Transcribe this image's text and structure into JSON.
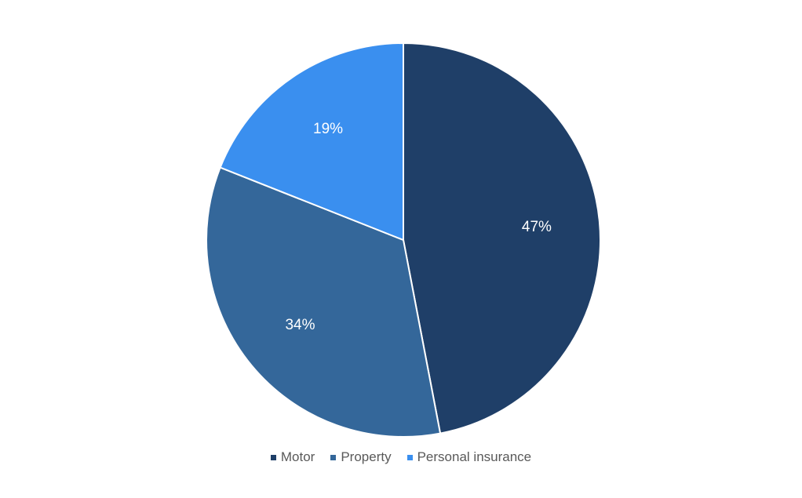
{
  "chart_data": {
    "type": "pie",
    "categories": [
      "Motor",
      "Property",
      "Personal insurance"
    ],
    "values": [
      47,
      34,
      19
    ],
    "labels": [
      "47%",
      "34%",
      "19%"
    ],
    "colors": [
      "#1f3f68",
      "#34679a",
      "#3a8fef"
    ],
    "start_angle": "12 o'clock",
    "direction": "clockwise",
    "legend_position": "bottom"
  }
}
